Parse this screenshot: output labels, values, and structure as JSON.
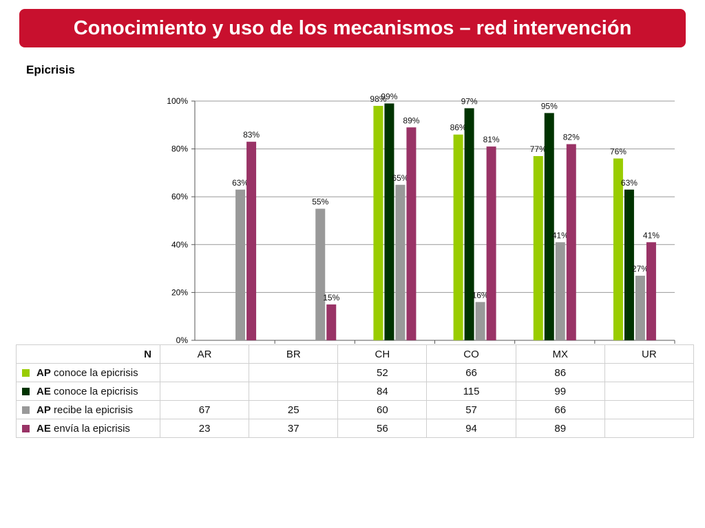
{
  "header": {
    "title": "Conocimiento y uso de los mecanismos – red intervención"
  },
  "subtitle": "Epicrisis",
  "colors": {
    "banner": "#c8102e",
    "ap_conoce": "#99cc00",
    "ae_conoce": "#003300",
    "ap_recibe": "#999999",
    "ae_envia": "#993366"
  },
  "chart_data": {
    "type": "bar",
    "categories": [
      "AR",
      "BR",
      "CH",
      "CO",
      "MX",
      "UR"
    ],
    "ylim": [
      0,
      100
    ],
    "yticks": [
      "0%",
      "20%",
      "40%",
      "60%",
      "80%",
      "100%"
    ],
    "series": [
      {
        "name": "AP conoce la epicrisis",
        "color": "#99cc00",
        "values": [
          null,
          null,
          98,
          86,
          77,
          76
        ],
        "labels": [
          "",
          "",
          "98%",
          "86%",
          "77%",
          "76%"
        ]
      },
      {
        "name": "AE conoce la epicrisis",
        "color": "#003300",
        "values": [
          null,
          null,
          99,
          97,
          95,
          63
        ],
        "labels": [
          "",
          "",
          "99%",
          "97%",
          "95%",
          "63%"
        ]
      },
      {
        "name": "AP recibe la epicrisis",
        "color": "#999999",
        "values": [
          63,
          55,
          65,
          16,
          41,
          27
        ],
        "labels": [
          "63%",
          "55%",
          "65%",
          "16%",
          "41%",
          "27%"
        ]
      },
      {
        "name": "AE envía la epicrisis",
        "color": "#993366",
        "values": [
          83,
          15,
          89,
          81,
          82,
          41
        ],
        "labels": [
          "83%",
          "15%",
          "89%",
          "81%",
          "82%",
          "41%"
        ]
      }
    ]
  },
  "table": {
    "n_label": "N",
    "columns": [
      "AR",
      "BR",
      "CH",
      "CO",
      "MX",
      "UR"
    ],
    "rows": [
      {
        "prefix": "AP",
        "label": "conoce la epicrisis",
        "values": [
          "",
          "",
          "52",
          "66",
          "86",
          ""
        ]
      },
      {
        "prefix": "AE",
        "label": "conoce la epicrisis",
        "values": [
          "",
          "",
          "84",
          "115",
          "99",
          ""
        ]
      },
      {
        "prefix": "AP",
        "label": "recibe la epicrisis",
        "values": [
          "67",
          "25",
          "60",
          "57",
          "66",
          ""
        ]
      },
      {
        "prefix": "AE",
        "label": "envía la epicrisis",
        "values": [
          "23",
          "37",
          "56",
          "94",
          "89",
          ""
        ]
      }
    ]
  }
}
